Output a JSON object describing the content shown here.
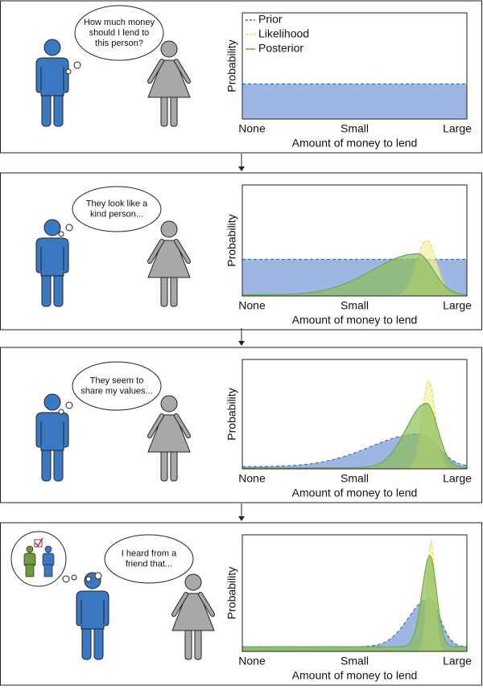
{
  "legend": [
    "Prior",
    "Likelihood",
    "Posterior"
  ],
  "panels": [
    {
      "speech": [
        "How much money",
        "should I lend to",
        "this person?"
      ],
      "chart": {
        "ylabel": "Probability",
        "xticks": [
          "None",
          "Small",
          "Large"
        ],
        "xlabel": "Amount of money to lend"
      }
    },
    {
      "speech": [
        "They look like a",
        "kind person..."
      ],
      "chart": {
        "ylabel": "Probability",
        "xticks": [
          "None",
          "Small",
          "Large"
        ],
        "xlabel": "Amount of money to lend"
      }
    },
    {
      "speech": [
        "They seem to",
        "share my values..."
      ],
      "chart": {
        "ylabel": "Probability",
        "xticks": [
          "None",
          "Small",
          "Large"
        ],
        "xlabel": "Amount of money to lend"
      }
    },
    {
      "speech": [
        "I heard from a",
        "friend that..."
      ],
      "chart": {
        "ylabel": "Probability",
        "xticks": [
          "None",
          "Small",
          "Large"
        ],
        "xlabel": "Amount of money to lend"
      }
    }
  ]
}
